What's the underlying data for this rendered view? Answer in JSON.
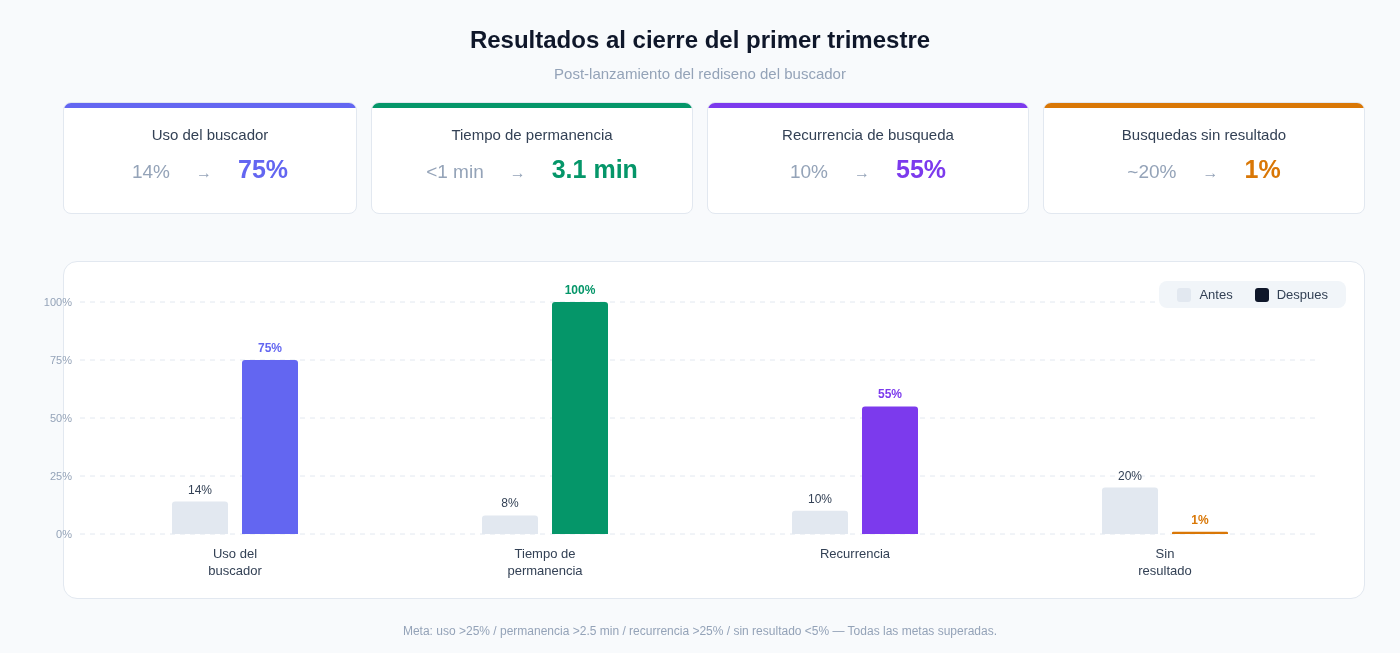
{
  "chart_data": [
    {
      "type": "other",
      "title": "Resultados al cierre del primer trimestre",
      "subtitle": "Post-lanzamiento del rediseno del buscador",
      "colors": [
        "#6366f1",
        "#059669",
        "#7c3aed",
        "#d97706"
      ],
      "annotations": [
        "Uso del buscador",
        "14%",
        "→",
        "75%",
        "Tiempo de permanencia",
        "<1 min",
        "→",
        "3.1 min",
        "Recurrencia de busqueda",
        "10%",
        "→",
        "55%",
        "Busquedas sin resultado",
        "~20%",
        "→",
        "1%"
      ]
    },
    {
      "type": "bar",
      "categories": [
        "Uso del buscador",
        "Tiempo de permanencia",
        "Recurrencia",
        "Sin resultado"
      ],
      "series": [
        {
          "name": "Antes",
          "color": "#e2e8f0",
          "values": [
            14,
            8,
            10,
            20
          ],
          "value_labels": [
            "14%",
            "8%",
            "10%",
            "20%"
          ]
        },
        {
          "name": "Despues",
          "color": "#0f172a",
          "colors": [
            "#6366f1",
            "#059669",
            "#7c3aed",
            "#d97706"
          ],
          "values": [
            75,
            100,
            55,
            1
          ],
          "value_labels": [
            "75%",
            "100%",
            "55%",
            "1%"
          ]
        }
      ],
      "ylim": [
        0,
        100
      ],
      "yticks": [
        {
          "value": 0,
          "label": "0%"
        },
        {
          "value": 25,
          "label": "25%"
        },
        {
          "value": 50,
          "label": "50%"
        },
        {
          "value": 75,
          "label": "75%"
        },
        {
          "value": 100,
          "label": "100%"
        }
      ],
      "grid": "y",
      "legend": "top right",
      "annotations": [
        "Meta: uso >25% / permanencia >2.5 min / recurrencia >25% / sin resultado <5% — Todas las metas superadas."
      ]
    }
  ]
}
